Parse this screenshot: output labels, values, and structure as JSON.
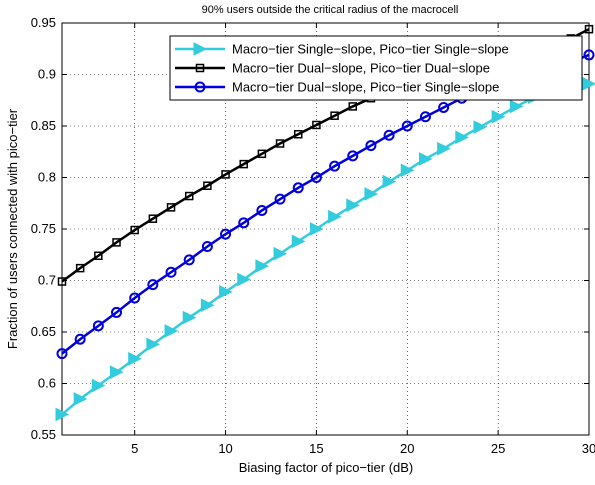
{
  "chart_data": {
    "type": "line",
    "title": "90% users outside the critical radius of the macrocell",
    "xlabel": "Biasing factor of pico−tier (dB)",
    "ylabel": "Fraction of users connected with pico−tier",
    "xlim": [
      1,
      30
    ],
    "ylim": [
      0.55,
      0.95
    ],
    "xticks": [
      5,
      10,
      15,
      20,
      25,
      30
    ],
    "yticks": [
      0.55,
      0.6,
      0.65,
      0.7,
      0.75,
      0.8,
      0.85,
      0.9,
      0.95
    ],
    "ytick_labels": [
      "0.55",
      "0.6",
      "0.65",
      "0.7",
      "0.75",
      "0.8",
      "0.85",
      "0.9",
      "0.95"
    ],
    "grid": true,
    "legend_position": "top-right",
    "x": [
      1,
      2,
      3,
      4,
      5,
      6,
      7,
      8,
      9,
      10,
      11,
      12,
      13,
      14,
      15,
      16,
      17,
      18,
      19,
      20,
      21,
      22,
      23,
      24,
      25,
      26,
      27,
      28,
      29,
      30
    ],
    "series": [
      {
        "name": "Macro−tier Single−slope, Pico−tier Single−slope",
        "color": "#33ccdd",
        "marker": "triangle-right",
        "values": [
          0.57,
          0.585,
          0.598,
          0.611,
          0.624,
          0.638,
          0.651,
          0.664,
          0.676,
          0.689,
          0.701,
          0.714,
          0.726,
          0.738,
          0.75,
          0.762,
          0.773,
          0.784,
          0.796,
          0.807,
          0.818,
          0.828,
          0.839,
          0.849,
          0.859,
          0.869,
          0.878,
          0.885,
          0.888,
          0.891
        ]
      },
      {
        "name": "Macro−tier Dual−slope, Pico−tier Dual−slope",
        "color": "#000000",
        "marker": "square",
        "values": [
          0.699,
          0.712,
          0.724,
          0.737,
          0.749,
          0.76,
          0.771,
          0.782,
          0.792,
          0.803,
          0.813,
          0.823,
          0.833,
          0.842,
          0.851,
          0.86,
          0.869,
          0.877,
          0.884,
          0.889,
          0.893,
          0.897,
          0.901,
          0.905,
          0.909,
          0.913,
          0.918,
          0.925,
          0.935,
          0.944
        ]
      },
      {
        "name": "Macro−tier Dual−slope, Pico−tier Single−slope",
        "color": "#0000dd",
        "marker": "circle",
        "values": [
          0.629,
          0.643,
          0.656,
          0.669,
          0.683,
          0.696,
          0.708,
          0.72,
          0.733,
          0.745,
          0.756,
          0.768,
          0.779,
          0.79,
          0.8,
          0.811,
          0.821,
          0.831,
          0.841,
          0.85,
          0.859,
          0.868,
          0.877,
          0.885,
          0.892,
          0.897,
          0.902,
          0.906,
          0.912,
          0.919
        ]
      }
    ]
  }
}
